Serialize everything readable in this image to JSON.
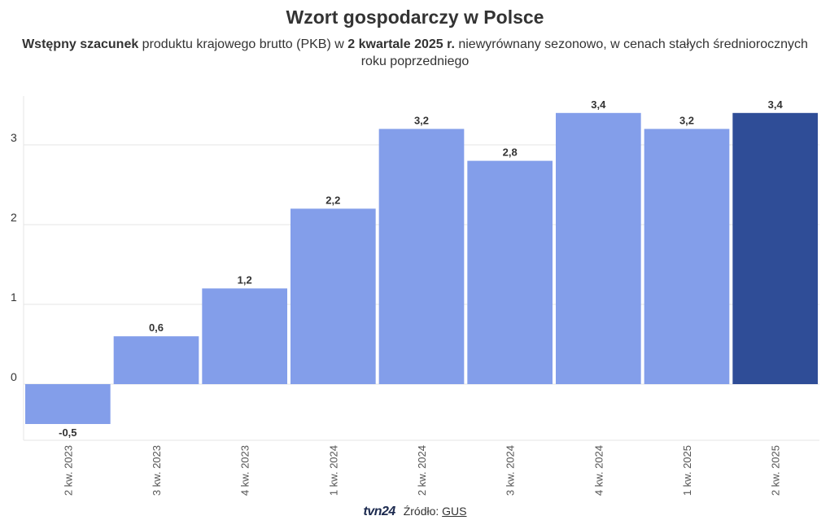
{
  "title": "Wzort gospodarczy w Polsce",
  "subtitle": {
    "bold1": "Wstępny szacunek",
    "text1": " produktu krajowego brutto (PKB) w ",
    "bold2": "2 kwartale 2025 r.",
    "text2": " niewyrównany sezonowo, w cenach stałych średniorocznych roku poprzedniego"
  },
  "footer": {
    "logo": "tvn24",
    "source_label": "Źródło:",
    "source_link": "GUS"
  },
  "colors": {
    "bar": "#839eea",
    "highlight": "#2f4d97",
    "grid": "#e6e6e6",
    "text": "#333333"
  },
  "chart_data": {
    "type": "bar",
    "categories": [
      "2 kw. 2023",
      "3 kw. 2023",
      "4 kw. 2023",
      "1 kw. 2024",
      "2 kw. 2024",
      "3 kw. 2024",
      "4 kw. 2024",
      "1 kw. 2025",
      "2 kw. 2025"
    ],
    "values": [
      -0.5,
      0.6,
      1.2,
      2.2,
      3.2,
      2.8,
      3.4,
      3.2,
      3.4
    ],
    "value_labels": [
      "-0,5",
      "0,6",
      "1,2",
      "2,2",
      "3,2",
      "2,8",
      "3,4",
      "3,2",
      "3,4"
    ],
    "highlight_index": 8,
    "yticks": [
      0,
      1,
      2,
      3
    ],
    "ylim": [
      -0.7,
      3.6
    ],
    "grid": true,
    "legend": false
  }
}
